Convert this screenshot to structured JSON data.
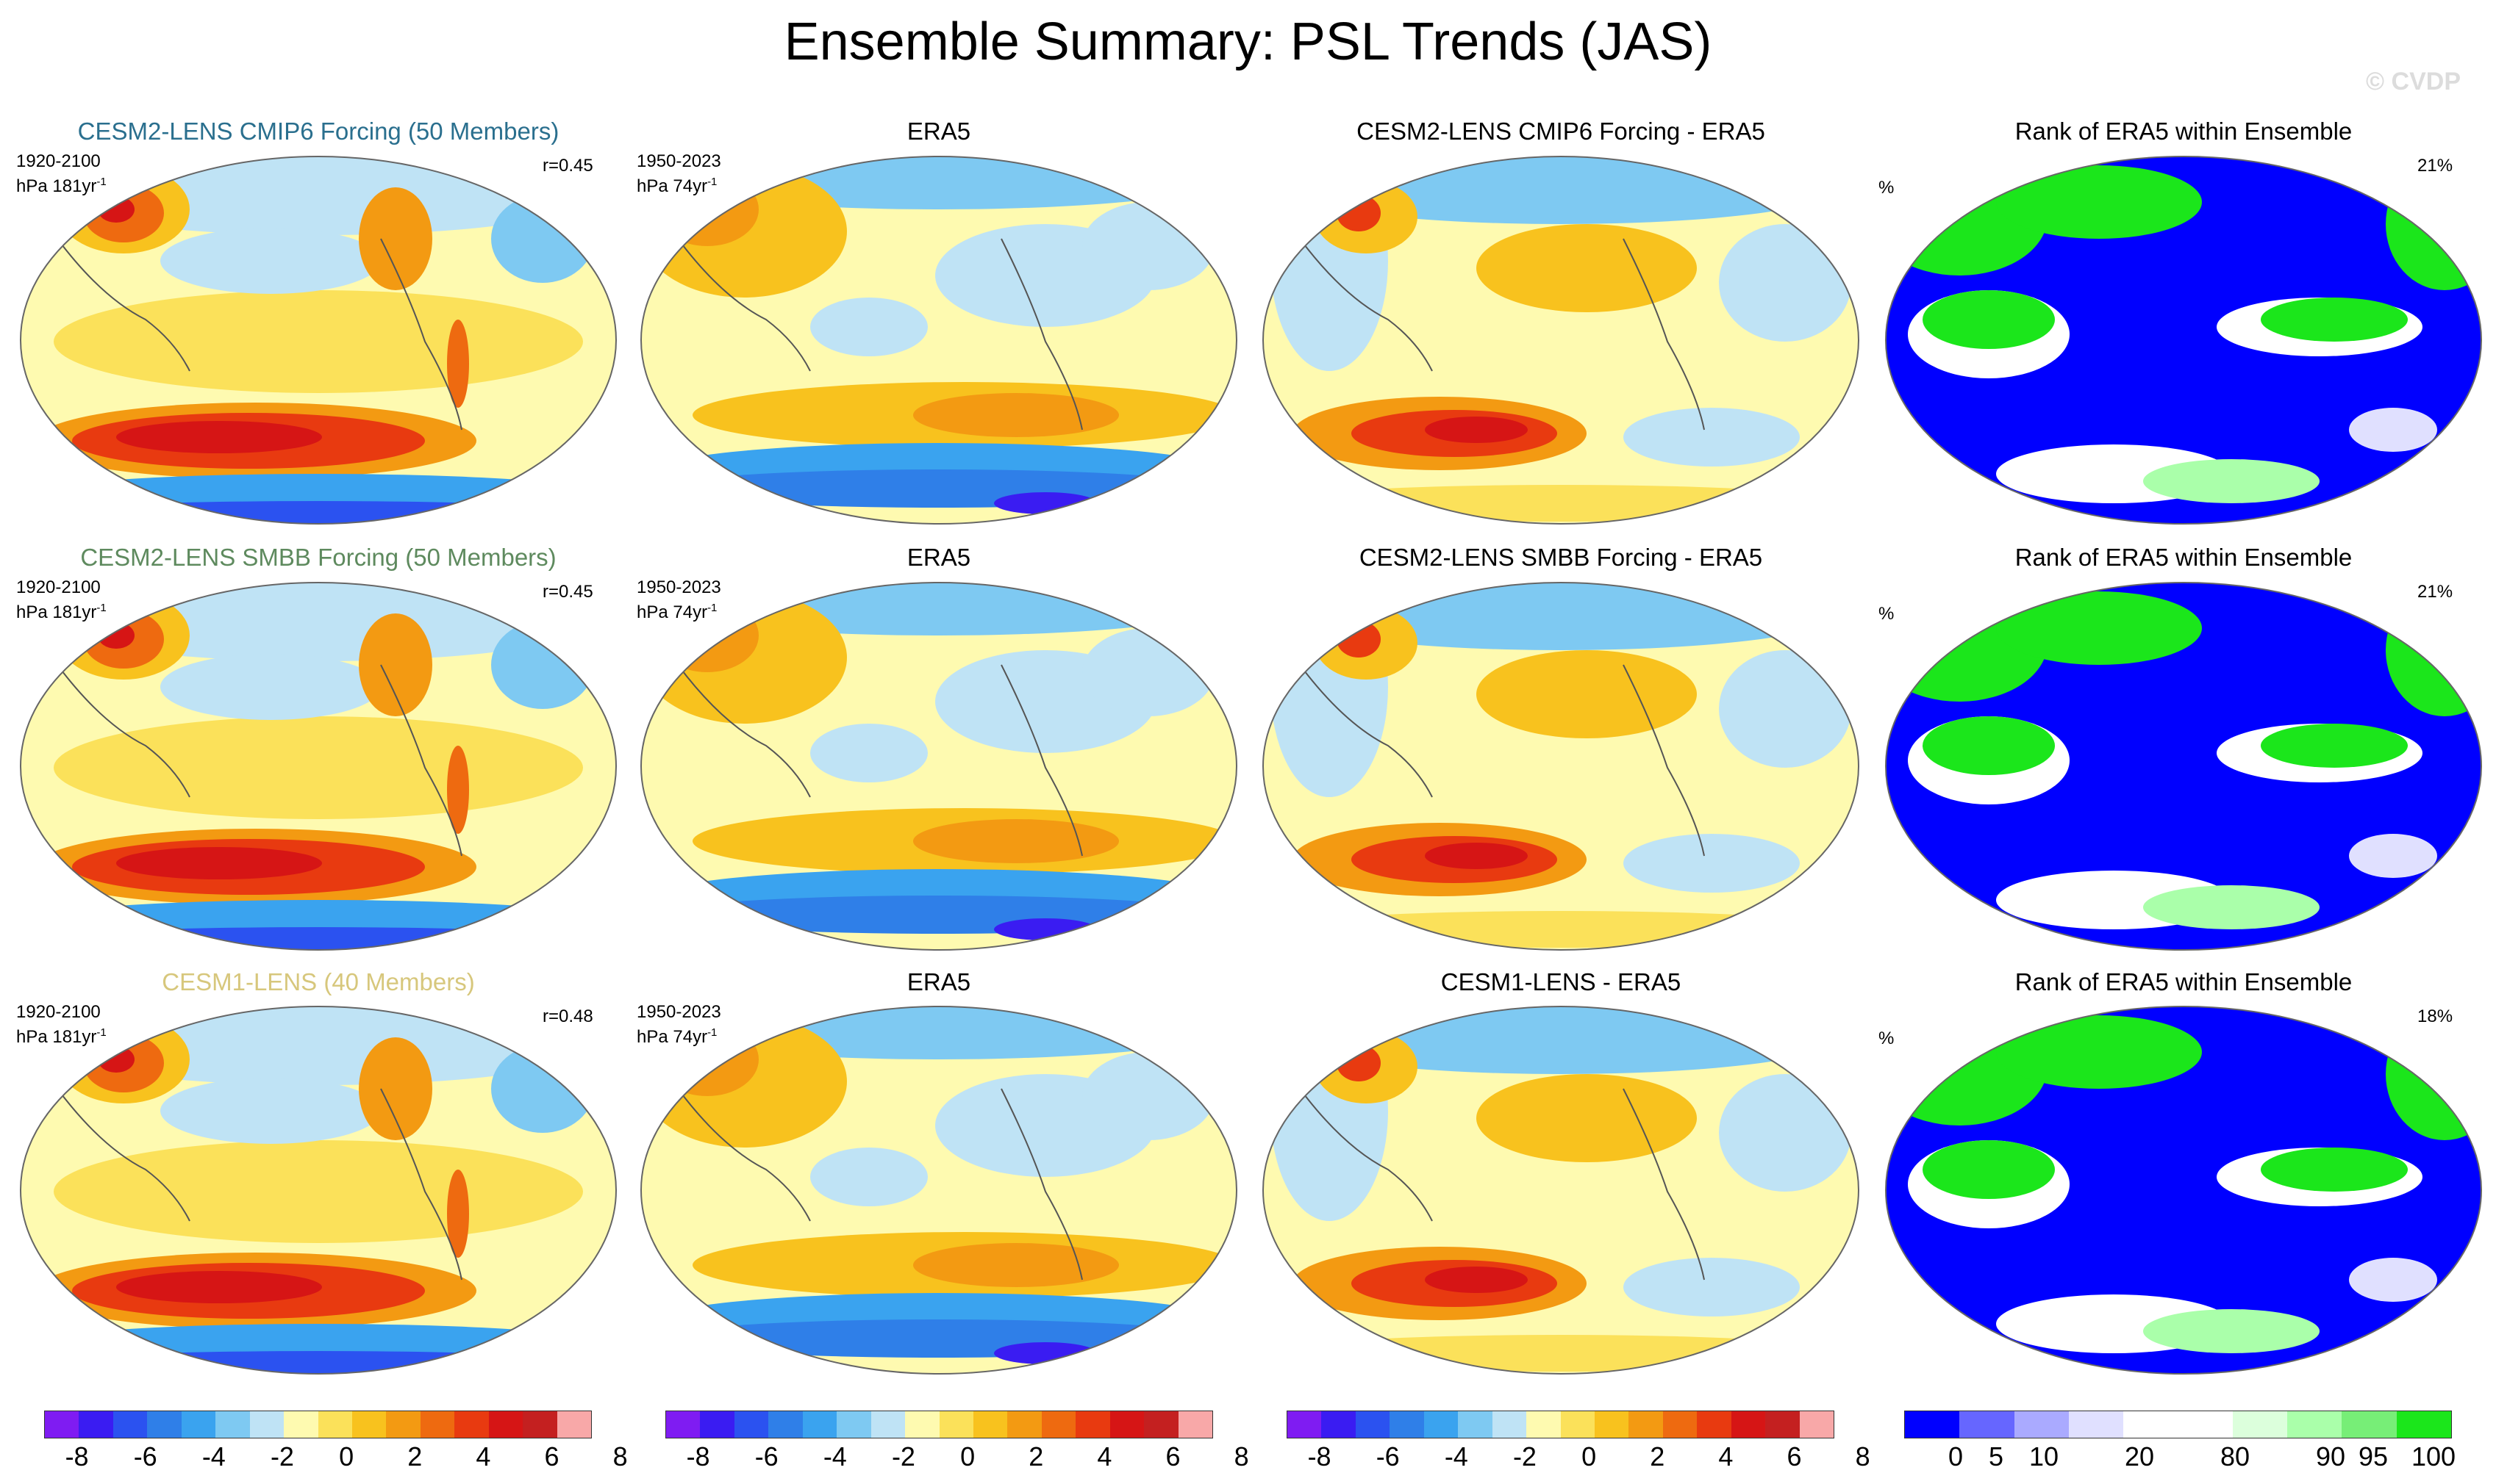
{
  "title": "Ensemble Summary: PSL Trends (JAS)",
  "watermark": "© CVDP",
  "colors": {
    "rows_title": [
      "#2a6f8e",
      "#5e8a5e",
      "#d7c77c"
    ],
    "psl_scale": [
      "#7f1cf2",
      "#3a1cf2",
      "#2b52f0",
      "#2f7fe8",
      "#3aa3ef",
      "#7ec9f2",
      "#bfe3f5",
      "#fefab0",
      "#fbe15a",
      "#f8c21e",
      "#f39a12",
      "#ee6a10",
      "#e83a10",
      "#d61515",
      "#c42020",
      "#f8a8a8"
    ],
    "rank_scale": [
      "#0000ff",
      "#6666ff",
      "#aaaaff",
      "#e0e0ff",
      "#ffffff",
      "#ffffff",
      "#dcffdc",
      "#aaffaa",
      "#77ee77",
      "#1be61b"
    ]
  },
  "rows": [
    {
      "model": {
        "title": "CESM2-LENS CMIP6 Forcing (50 Members)",
        "years": "1920-2100",
        "units": "hPa 181yr",
        "units_sup": "-1",
        "r": "r=0.45"
      },
      "obs": {
        "title": "ERA5",
        "years": "1950-2023",
        "units": "hPa 74yr",
        "units_sup": "-1"
      },
      "diff": {
        "title": "CESM2-LENS CMIP6 Forcing - ERA5"
      },
      "rank": {
        "title": "Rank of ERA5 within Ensemble",
        "pct_label": "%",
        "pct": "21%"
      }
    },
    {
      "model": {
        "title": "CESM2-LENS SMBB Forcing (50 Members)",
        "years": "1920-2100",
        "units": "hPa 181yr",
        "units_sup": "-1",
        "r": "r=0.45"
      },
      "obs": {
        "title": "ERA5",
        "years": "1950-2023",
        "units": "hPa 74yr",
        "units_sup": "-1"
      },
      "diff": {
        "title": "CESM2-LENS SMBB Forcing - ERA5"
      },
      "rank": {
        "title": "Rank of ERA5 within Ensemble",
        "pct_label": "%",
        "pct": "21%"
      }
    },
    {
      "model": {
        "title": "CESM1-LENS (40 Members)",
        "years": "1920-2100",
        "units": "hPa 181yr",
        "units_sup": "-1",
        "r": "r=0.48"
      },
      "obs": {
        "title": "ERA5",
        "years": "1950-2023",
        "units": "hPa 74yr",
        "units_sup": "-1"
      },
      "diff": {
        "title": "CESM1-LENS - ERA5"
      },
      "rank": {
        "title": "Rank of ERA5 within Ensemble",
        "pct_label": "%",
        "pct": "18%"
      }
    }
  ],
  "colorbars": {
    "psl_labels": [
      "-8",
      "-6",
      "-4",
      "-2",
      "0",
      "2",
      "4",
      "6",
      "8"
    ],
    "rank_labels": [
      "0",
      "5",
      "10",
      "20",
      "80",
      "90",
      "95",
      "100"
    ]
  },
  "chart_data": {
    "type": "heatmap",
    "title": "Ensemble Summary: PSL Trends (JAS)",
    "variable": "PSL trend",
    "season": "JAS",
    "units": "hPa",
    "colorbar_psl": {
      "min": -8,
      "max": 8,
      "ticks": [
        -8,
        -6,
        -4,
        -2,
        0,
        2,
        4,
        6,
        8
      ]
    },
    "colorbar_rank": {
      "ticks": [
        0,
        5,
        10,
        20,
        80,
        90,
        95,
        100
      ]
    },
    "panels": [
      {
        "row": 1,
        "col": 1,
        "title": "CESM2-LENS CMIP6 Forcing (50 Members)",
        "period": "1920-2100",
        "pattern_corr": 0.45
      },
      {
        "row": 1,
        "col": 2,
        "title": "ERA5",
        "period": "1950-2023"
      },
      {
        "row": 1,
        "col": 3,
        "title": "CESM2-LENS CMIP6 Forcing - ERA5"
      },
      {
        "row": 1,
        "col": 4,
        "title": "Rank of ERA5 within Ensemble",
        "global_pct": 21
      },
      {
        "row": 2,
        "col": 1,
        "title": "CESM2-LENS SMBB Forcing (50 Members)",
        "period": "1920-2100",
        "pattern_corr": 0.45
      },
      {
        "row": 2,
        "col": 2,
        "title": "ERA5",
        "period": "1950-2023"
      },
      {
        "row": 2,
        "col": 3,
        "title": "CESM2-LENS SMBB Forcing - ERA5"
      },
      {
        "row": 2,
        "col": 4,
        "title": "Rank of ERA5 within Ensemble",
        "global_pct": 21
      },
      {
        "row": 3,
        "col": 1,
        "title": "CESM1-LENS (40 Members)",
        "period": "1920-2100",
        "pattern_corr": 0.48
      },
      {
        "row": 3,
        "col": 2,
        "title": "ERA5",
        "period": "1950-2023"
      },
      {
        "row": 3,
        "col": 3,
        "title": "CESM1-LENS - ERA5"
      },
      {
        "row": 3,
        "col": 4,
        "title": "Rank of ERA5 within Ensemble",
        "global_pct": 18
      }
    ]
  }
}
